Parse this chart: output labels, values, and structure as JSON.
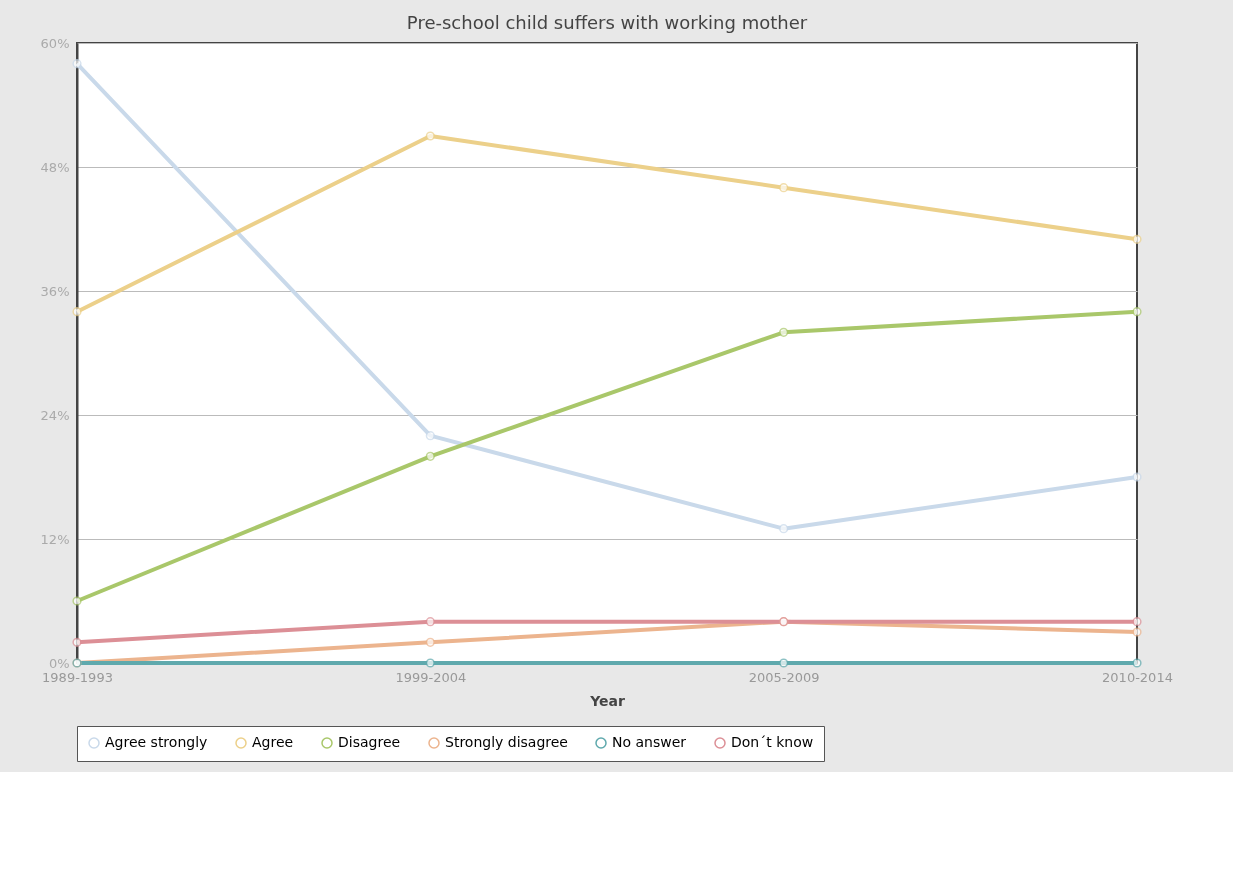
{
  "chart_data": {
    "type": "line",
    "title": "Pre-school child suffers with working mother",
    "xlabel": "Year",
    "categories": [
      "1989-1993",
      "1999-2004",
      "2005-2009",
      "2010-2014"
    ],
    "series": [
      {
        "name": "Agree strongly",
        "color": "#c9d9ea",
        "values": [
          58,
          22,
          13,
          18
        ]
      },
      {
        "name": "Agree",
        "color": "#ecd08a",
        "values": [
          34,
          51,
          46,
          41
        ]
      },
      {
        "name": "Disagree",
        "color": "#a9c76a",
        "values": [
          6,
          20,
          32,
          34
        ]
      },
      {
        "name": "Strongly disagree",
        "color": "#ecb48e",
        "values": [
          0,
          2,
          4,
          3
        ]
      },
      {
        "name": "No answer",
        "color": "#5fa9ad",
        "values": [
          0,
          0,
          0,
          0
        ]
      },
      {
        "name": "Don´t know",
        "color": "#dc8f96",
        "values": [
          2,
          4,
          4,
          4
        ]
      }
    ],
    "ylim": [
      0,
      60
    ],
    "yticks": [
      {
        "value": 0,
        "label": "0%"
      },
      {
        "value": 12,
        "label": "12%"
      },
      {
        "value": 24,
        "label": "24%"
      },
      {
        "value": 36,
        "label": "36%"
      },
      {
        "value": 48,
        "label": "48%"
      },
      {
        "value": 60,
        "label": "60%"
      }
    ],
    "grid": "y",
    "legend": "bottom",
    "marker": "circle",
    "line_style": "solid"
  }
}
